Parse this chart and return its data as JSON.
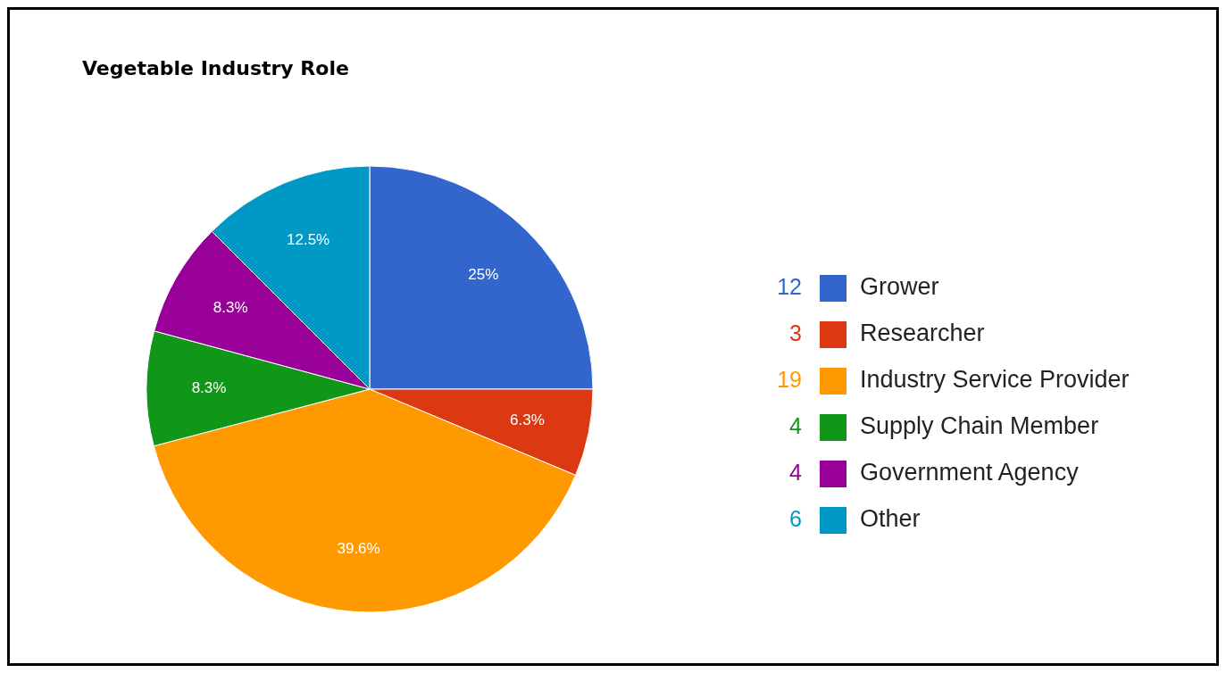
{
  "chart_data": {
    "type": "pie",
    "title": "Vegetable Industry Role",
    "categories": [
      "Grower",
      "Researcher",
      "Industry Service Provider",
      "Supply Chain Member",
      "Government Agency",
      "Other"
    ],
    "values": [
      25,
      6.3,
      39.6,
      8.3,
      8.3,
      12.5
    ],
    "annotations": [
      "12",
      "3",
      "19",
      "4",
      "4",
      "6"
    ],
    "value_labels": [
      "25%",
      "6.3%",
      "39.6%",
      "8.3%",
      "8.3%",
      "12.5%"
    ],
    "colors": [
      "#3366cc",
      "#dc3912",
      "#ff9900",
      "#109618",
      "#990099",
      "#0099c6"
    ],
    "legend": "right"
  }
}
